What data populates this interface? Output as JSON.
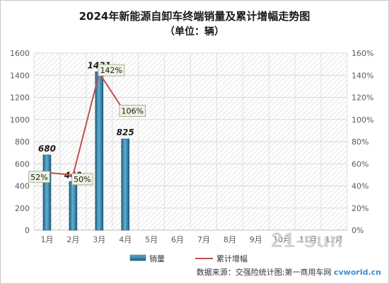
{
  "chart_data": {
    "type": "bar",
    "title": "2024年新能源自卸车终端销量及累计增幅走势图",
    "subtitle": "（单位：辆）",
    "categories": [
      "1月",
      "2月",
      "3月",
      "4月",
      "5月",
      "6月",
      "7月",
      "8月",
      "9月",
      "10月",
      "11月",
      "12月"
    ],
    "series": [
      {
        "name": "销量",
        "type": "bar",
        "axis": "left",
        "values": [
          680,
          440,
          1431,
          825,
          null,
          null,
          null,
          null,
          null,
          null,
          null,
          null
        ],
        "color": "#2e7fa6"
      },
      {
        "name": "累计增幅",
        "type": "line",
        "axis": "right",
        "values": [
          0.52,
          0.5,
          1.42,
          1.06,
          null,
          null,
          null,
          null,
          null,
          null,
          null,
          null
        ],
        "labels": [
          "52%",
          "50%",
          "142%",
          "106%"
        ],
        "color": "#c0504d"
      }
    ],
    "bar_labels": [
      "680",
      "440",
      "1431",
      "825"
    ],
    "ylim_left": [
      0,
      1600
    ],
    "yticks_left": [
      "0",
      "200",
      "400",
      "600",
      "800",
      "1000",
      "1200",
      "1400",
      "1600"
    ],
    "ylim_right": [
      0,
      1.6
    ],
    "yticks_right": [
      "0%",
      "20%",
      "40%",
      "60%",
      "80%",
      "100%",
      "120%",
      "140%",
      "160%"
    ],
    "grid": true,
    "legend_position": "bottom"
  },
  "footer": {
    "source_label": "数据来源：交强险统计图;第一商用车网",
    "website": "cvworld.cn"
  },
  "watermark": "21-sun"
}
